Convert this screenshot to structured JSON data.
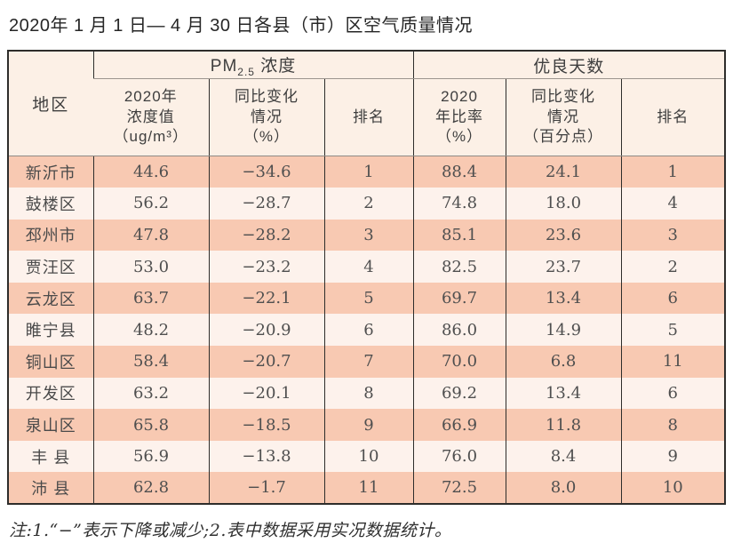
{
  "page": {
    "title": "2020年 1 月 1 日— 4 月 30 日各县（市）区空气质量情况",
    "note": "注:1.“−”表示下降或减少;2.表中数据采用实况数据统计。"
  },
  "table": {
    "region_header": "地区",
    "pm_group": {
      "prefix": "PM",
      "sub": "2.5",
      "suffix": " 浓度"
    },
    "good_group_label": "优良天数",
    "subheaders": [
      "2020年\n浓度值\n（ug/m³）",
      "同比变化\n情况\n（%）",
      "排名",
      "2020\n年比率\n（%）",
      "同比变化\n情况\n（百分点）",
      "排名"
    ],
    "rows": [
      {
        "region": "新沂市",
        "pm_value": "44.6",
        "pm_change": "−34.6",
        "pm_rank": "1",
        "good_rate": "88.4",
        "good_change": "24.1",
        "good_rank": "1"
      },
      {
        "region": "鼓楼区",
        "pm_value": "56.2",
        "pm_change": "−28.7",
        "pm_rank": "2",
        "good_rate": "74.8",
        "good_change": "18.0",
        "good_rank": "4"
      },
      {
        "region": "邳州市",
        "pm_value": "47.8",
        "pm_change": "−28.2",
        "pm_rank": "3",
        "good_rate": "85.1",
        "good_change": "23.6",
        "good_rank": "3"
      },
      {
        "region": "贾汪区",
        "pm_value": "53.0",
        "pm_change": "−23.2",
        "pm_rank": "4",
        "good_rate": "82.5",
        "good_change": "23.7",
        "good_rank": "2"
      },
      {
        "region": "云龙区",
        "pm_value": "63.7",
        "pm_change": "−22.1",
        "pm_rank": "5",
        "good_rate": "69.7",
        "good_change": "13.4",
        "good_rank": "6"
      },
      {
        "region": "睢宁县",
        "pm_value": "48.2",
        "pm_change": "−20.9",
        "pm_rank": "6",
        "good_rate": "86.0",
        "good_change": "14.9",
        "good_rank": "5"
      },
      {
        "region": "铜山区",
        "pm_value": "58.4",
        "pm_change": "−20.7",
        "pm_rank": "7",
        "good_rate": "70.0",
        "good_change": "6.8",
        "good_rank": "11"
      },
      {
        "region": "开发区",
        "pm_value": "63.2",
        "pm_change": "−20.1",
        "pm_rank": "8",
        "good_rate": "69.2",
        "good_change": "13.4",
        "good_rank": "6"
      },
      {
        "region": "泉山区",
        "pm_value": "65.8",
        "pm_change": "−18.5",
        "pm_rank": "9",
        "good_rate": "66.9",
        "good_change": "11.8",
        "good_rank": "8"
      },
      {
        "region": "丰 县",
        "pm_value": "56.9",
        "pm_change": "−13.8",
        "pm_rank": "10",
        "good_rate": "76.0",
        "good_change": "8.4",
        "good_rank": "9"
      },
      {
        "region": "沛 县",
        "pm_value": "62.8",
        "pm_change": "−1.7",
        "pm_rank": "11",
        "good_rate": "72.5",
        "good_change": "8.0",
        "good_rank": "10"
      }
    ]
  }
}
